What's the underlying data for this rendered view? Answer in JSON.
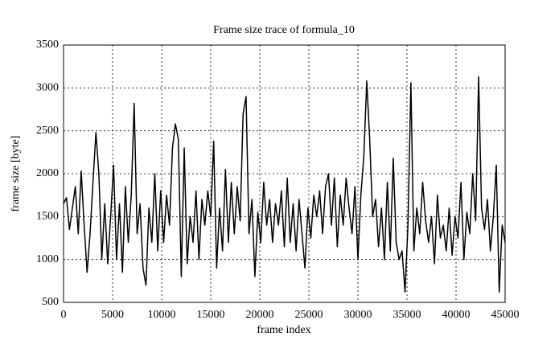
{
  "chart_data": {
    "type": "line",
    "title": "Frame size trace of formula_10",
    "x_label": "frame index",
    "y_label": "frame size [byte]",
    "x": [
      0,
      300,
      600,
      900,
      1200,
      1500,
      1800,
      2100,
      2400,
      2700,
      3000,
      3300,
      3600,
      3900,
      4200,
      4500,
      4800,
      5100,
      5400,
      5700,
      6000,
      6300,
      6600,
      6900,
      7200,
      7500,
      7800,
      8100,
      8400,
      8700,
      9000,
      9300,
      9600,
      9900,
      10200,
      10500,
      10800,
      11100,
      11400,
      11700,
      12000,
      12300,
      12600,
      12900,
      13200,
      13500,
      13800,
      14100,
      14400,
      14700,
      15000,
      15300,
      15600,
      15900,
      16200,
      16500,
      16800,
      17100,
      17400,
      17700,
      18000,
      18300,
      18600,
      18900,
      19200,
      19500,
      19800,
      20100,
      20400,
      20700,
      21000,
      21300,
      21600,
      21900,
      22200,
      22500,
      22800,
      23100,
      23400,
      23700,
      24000,
      24300,
      24600,
      24900,
      25200,
      25500,
      25800,
      26100,
      26400,
      26700,
      27000,
      27300,
      27600,
      27900,
      28200,
      28500,
      28800,
      29100,
      29400,
      29700,
      30000,
      30300,
      30600,
      30900,
      31200,
      31500,
      31800,
      32100,
      32400,
      32700,
      33000,
      33300,
      33600,
      33900,
      34200,
      34500,
      34800,
      35100,
      35400,
      35700,
      36000,
      36300,
      36600,
      36900,
      37200,
      37500,
      37800,
      38100,
      38400,
      38700,
      39000,
      39300,
      39600,
      39900,
      40200,
      40500,
      40800,
      41100,
      41400,
      41700,
      42000,
      42300,
      42600,
      42900,
      43200,
      43500,
      43800,
      44100,
      44400,
      44700,
      45000
    ],
    "series": [
      {
        "name": "formula_10",
        "color": "#000000",
        "values": [
          1650,
          1720,
          1350,
          1600,
          1850,
          1300,
          2030,
          1400,
          850,
          1300,
          1900,
          2480,
          2000,
          1000,
          1650,
          950,
          1500,
          2100,
          1000,
          1650,
          850,
          1850,
          1200,
          1750,
          2820,
          1300,
          1650,
          900,
          700,
          1600,
          1200,
          2000,
          1100,
          1800,
          1200,
          1750,
          1400,
          2300,
          2580,
          2400,
          800,
          2300,
          950,
          1500,
          1200,
          1800,
          1000,
          1700,
          1400,
          1800,
          1500,
          2380,
          900,
          1600,
          1100,
          2050,
          1200,
          1900,
          1300,
          1850,
          1450,
          2700,
          2900,
          1300,
          1700,
          800,
          1550,
          1200,
          1900,
          1400,
          1700,
          1200,
          1650,
          1400,
          1800,
          1150,
          1950,
          1200,
          1650,
          1100,
          1700,
          1300,
          900,
          1600,
          1250,
          1750,
          1500,
          1800,
          1300,
          1850,
          2000,
          1400,
          1950,
          1150,
          1750,
          1400,
          1950,
          1600,
          1300,
          1850,
          1000,
          1750,
          2200,
          3080,
          2400,
          1500,
          1700,
          1150,
          1600,
          1000,
          1900,
          1100,
          2180,
          1200,
          1000,
          1100,
          620,
          1400,
          3060,
          1100,
          1600,
          1300,
          1900,
          1450,
          1200,
          1500,
          950,
          1750,
          1250,
          1400,
          1100,
          1600,
          1050,
          1500,
          1250,
          1900,
          1000,
          1550,
          1300,
          2000,
          1450,
          3130,
          1600,
          1350,
          1700,
          1100,
          1500,
          2100,
          620,
          1400,
          1200
        ]
      }
    ],
    "xlim": [
      0,
      45000
    ],
    "xticks": [
      0,
      5000,
      10000,
      15000,
      20000,
      25000,
      30000,
      35000,
      40000,
      45000
    ],
    "ylim": [
      500,
      3500
    ],
    "yticks": [
      500,
      1000,
      1500,
      2000,
      2500,
      3000,
      3500
    ],
    "grid": true
  }
}
